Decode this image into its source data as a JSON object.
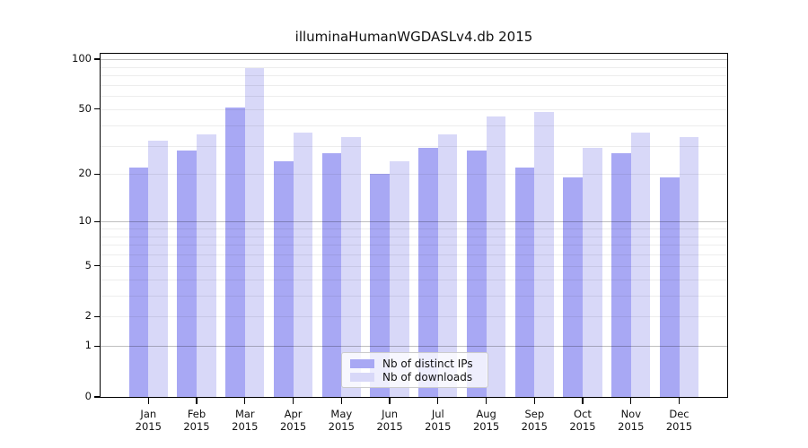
{
  "title": "illuminaHumanWGDASLv4.db 2015",
  "colors": {
    "ips_bar": "#a8a8f4",
    "downloads_bar": "#d8d8f8",
    "grid_major": "rgba(0,0,0,0.25)",
    "grid_minor": "rgba(0,0,0,0.07)",
    "axis": "#000000"
  },
  "legend": {
    "items": [
      {
        "key": "ips",
        "label": "Nb of distinct IPs"
      },
      {
        "key": "downloads",
        "label": "Nb of downloads"
      }
    ]
  },
  "chart_data": {
    "type": "bar",
    "title": "illuminaHumanWGDASLv4.db 2015",
    "categories": [
      "Jan",
      "Feb",
      "Mar",
      "Apr",
      "May",
      "Jun",
      "Jul",
      "Aug",
      "Sep",
      "Oct",
      "Nov",
      "Dec"
    ],
    "category_year": "2015",
    "series": [
      {
        "name": "Nb of distinct IPs",
        "key": "ips",
        "values": [
          22,
          28,
          51,
          24,
          27,
          20,
          29,
          28,
          22,
          19,
          27,
          19
        ]
      },
      {
        "name": "Nb of downloads",
        "key": "downloads",
        "values": [
          32,
          35,
          88,
          36,
          34,
          24,
          35,
          45,
          48,
          29,
          36,
          34
        ]
      }
    ],
    "yticks": [
      0,
      1,
      2,
      5,
      10,
      20,
      50,
      100
    ],
    "grid_major_values": [
      1,
      10,
      100
    ],
    "grid_minor_values": [
      2,
      3,
      4,
      5,
      6,
      7,
      8,
      9,
      20,
      30,
      40,
      50,
      60,
      70,
      80,
      90
    ],
    "scale": "log2(1+x)",
    "ylim": [
      0,
      108
    ],
    "grid": true,
    "legend_position": "bottom-center",
    "xlabel": "",
    "ylabel": ""
  }
}
